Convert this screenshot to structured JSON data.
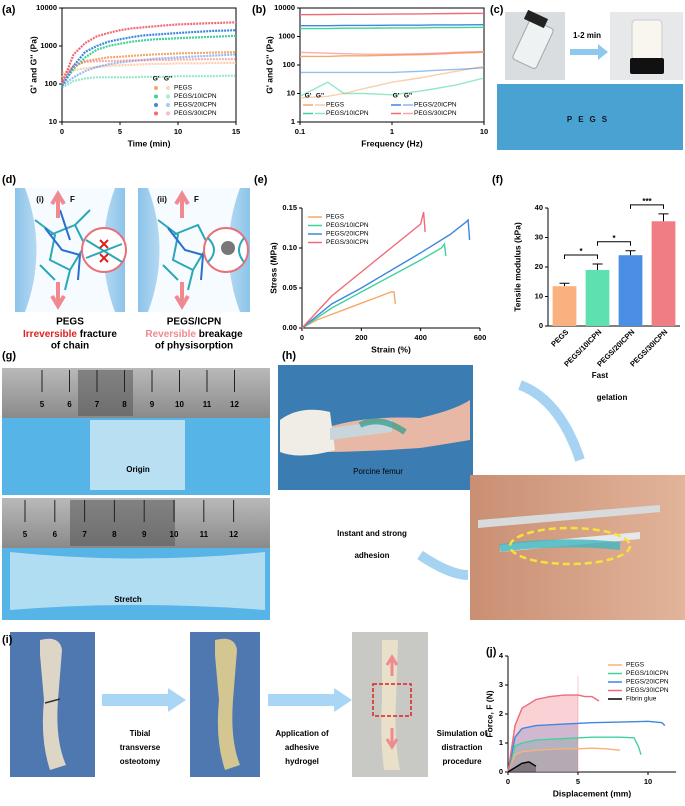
{
  "chart_data": [
    {
      "type": "line",
      "panel_label": "(a)",
      "xlabel": "Time (min)",
      "ylabel": "G' and G'' (Pa)",
      "x": [
        0,
        1,
        2,
        3,
        4,
        5,
        6,
        7,
        8,
        9,
        10,
        11,
        12,
        13,
        14,
        15
      ],
      "xlim": [
        0,
        15
      ],
      "xticks": [
        0,
        5,
        10,
        15
      ],
      "ylim": [
        10,
        10000
      ],
      "yticks": [
        10,
        100,
        1000,
        10000
      ],
      "ylog": true,
      "box": true,
      "legend": "lower right",
      "legend_columns": 1,
      "marker": "circle",
      "legend_headers": [
        "G'",
        "G''"
      ],
      "series": [
        {
          "name": "PEGS",
          "color": "#f5a86a",
          "storage": [
            150,
            300,
            400,
            450,
            500,
            520,
            550,
            580,
            600,
            620,
            640,
            650,
            660,
            670,
            680,
            690
          ],
          "loss": [
            200,
            230,
            260,
            280,
            300,
            310,
            320,
            330,
            340,
            340,
            350,
            350,
            350,
            360,
            360,
            360
          ]
        },
        {
          "name": "PEGS/10ICPN",
          "color": "#3fd39c",
          "storage": [
            90,
            250,
            500,
            800,
            1000,
            1150,
            1300,
            1400,
            1500,
            1550,
            1600,
            1650,
            1700,
            1750,
            1800,
            1850
          ],
          "loss": [
            80,
            120,
            140,
            150,
            150,
            150,
            150,
            155,
            155,
            155,
            160,
            160,
            160,
            160,
            165,
            165
          ]
        },
        {
          "name": "PEGS/20ICPN",
          "color": "#3f86e0",
          "storage": [
            90,
            300,
            700,
            1000,
            1300,
            1500,
            1700,
            1900,
            2000,
            2100,
            2200,
            2300,
            2400,
            2500,
            2550,
            2600
          ],
          "loss": [
            90,
            150,
            220,
            280,
            330,
            370,
            400,
            430,
            460,
            480,
            500,
            520,
            540,
            560,
            580,
            600
          ]
        },
        {
          "name": "PEGS/30ICPN",
          "color": "#f06a78",
          "storage": [
            100,
            600,
            1200,
            1800,
            2200,
            2600,
            2900,
            3100,
            3300,
            3500,
            3700,
            3800,
            3900,
            4000,
            4100,
            4200
          ],
          "loss": [
            120,
            300,
            380,
            400,
            400,
            410,
            420,
            420,
            430,
            430,
            440,
            440,
            450,
            450,
            450,
            450
          ]
        }
      ]
    },
    {
      "type": "line",
      "panel_label": "(b)",
      "xlabel": "Frequency (Hz)",
      "ylabel": "G' and G'' (Pa)",
      "x": [
        0.1,
        0.2,
        0.3,
        0.5,
        1,
        2,
        3,
        5,
        10
      ],
      "xlim": [
        0.1,
        10
      ],
      "xticks": [
        0.1,
        1,
        10
      ],
      "xlog": true,
      "ylim": [
        1,
        10000
      ],
      "yticks": [
        1,
        10,
        100,
        1000,
        10000
      ],
      "ylog": true,
      "box": true,
      "legend": "lower center",
      "legend_columns": 2,
      "legend_headers": [
        "G'",
        "G''"
      ],
      "series": [
        {
          "name": "PEGS",
          "color": "#f5a86a",
          "storage": [
            200,
            200,
            210,
            210,
            220,
            230,
            240,
            260,
            280
          ],
          "loss": [
            7,
            8,
            10,
            15,
            25,
            35,
            45,
            60,
            90
          ]
        },
        {
          "name": "PEGS/10ICPN",
          "color": "#3fd39c",
          "storage": [
            1900,
            1900,
            1950,
            1950,
            2000,
            2000,
            2050,
            2050,
            2100
          ],
          "loss": [
            8,
            25,
            10,
            10,
            9,
            12,
            15,
            20,
            35
          ]
        },
        {
          "name": "PEGS/20ICPN",
          "color": "#3f86e0",
          "storage": [
            2400,
            2400,
            2450,
            2450,
            2500,
            2500,
            2550,
            2550,
            2600
          ],
          "loss": [
            55,
            55,
            55,
            55,
            55,
            60,
            65,
            70,
            80
          ]
        },
        {
          "name": "PEGS/30ICPN",
          "color": "#f06a78",
          "storage": [
            5800,
            5900,
            6000,
            6000,
            6100,
            6200,
            6300,
            6400,
            6500
          ],
          "loss": [
            280,
            260,
            250,
            240,
            240,
            250,
            260,
            280,
            300
          ]
        }
      ]
    },
    {
      "type": "line",
      "panel_label": "(e)",
      "xlabel": "Strain (%)",
      "ylabel": "Stress (MPa)",
      "xlim": [
        0,
        600
      ],
      "xticks": [
        0,
        200,
        400,
        600
      ],
      "ylim": [
        0,
        0.15
      ],
      "yticks": [
        {
          "value": 0,
          "label": "0.00"
        },
        0.05,
        {
          "value": 0.1,
          "label": "0.10"
        },
        0.15
      ],
      "legend": "upper left",
      "series": [
        {
          "name": "PEGS",
          "color": "#f5a86a",
          "x": [
            0,
            50,
            100,
            150,
            200,
            250,
            300,
            310,
            315
          ],
          "values": [
            0,
            0.01,
            0.017,
            0.024,
            0.031,
            0.038,
            0.045,
            0.045,
            0.03
          ]
        },
        {
          "name": "PEGS/10ICPN",
          "color": "#3fd39c",
          "x": [
            0,
            100,
            200,
            300,
            400,
            470,
            480,
            485
          ],
          "values": [
            0,
            0.025,
            0.045,
            0.065,
            0.085,
            0.1,
            0.105,
            0.09
          ]
        },
        {
          "name": "PEGS/20ICPN",
          "color": "#3f86e0",
          "x": [
            0,
            100,
            200,
            300,
            400,
            500,
            555,
            560,
            565
          ],
          "values": [
            0,
            0.03,
            0.05,
            0.072,
            0.094,
            0.117,
            0.133,
            0.135,
            0.11
          ]
        },
        {
          "name": "PEGS/30ICPN",
          "color": "#f06a78",
          "x": [
            0,
            100,
            200,
            300,
            400,
            410,
            415
          ],
          "values": [
            0,
            0.04,
            0.07,
            0.1,
            0.13,
            0.145,
            0.12
          ]
        }
      ]
    },
    {
      "type": "bar",
      "panel_label": "(f)",
      "ylabel": "Tensile modulus (kPa)",
      "categories": [
        "PEGS",
        "PEGS/10ICPN",
        "PEGS/20ICPN",
        "PEGS/30ICPN"
      ],
      "values": [
        13.5,
        19,
        24,
        35.5
      ],
      "errors": [
        1,
        2,
        1.5,
        2.5
      ],
      "colors": [
        "#f9b27f",
        "#5fe0b0",
        "#4b8ee6",
        "#f07c84"
      ],
      "ylim": [
        0,
        40
      ],
      "yticks": [
        0,
        10,
        20,
        30,
        40
      ],
      "significance": [
        "*",
        "*",
        "***"
      ]
    },
    {
      "type": "line",
      "panel_label": "(j)",
      "xlabel": "Displacement (mm)",
      "ylabel": "Force, F (N)",
      "xlim": [
        0,
        12
      ],
      "xticks": [
        0,
        5,
        10
      ],
      "ylim": [
        0,
        4
      ],
      "yticks": [
        0,
        1,
        2,
        3,
        4
      ],
      "legend": "upper right",
      "shade_x": 5,
      "series": [
        {
          "name": "PEGS",
          "color": "#f5b27a",
          "x": [
            0,
            0.5,
            1,
            2,
            3,
            4,
            5,
            6,
            7,
            8
          ],
          "values": [
            0,
            0.6,
            0.7,
            0.75,
            0.78,
            0.8,
            0.8,
            0.82,
            0.8,
            0.75
          ]
        },
        {
          "name": "PEGS/10ICPN",
          "color": "#3fd39c",
          "x": [
            0,
            0.5,
            1,
            2,
            4,
            6,
            8,
            9,
            9.3,
            9.5
          ],
          "values": [
            0,
            0.9,
            1.0,
            1.1,
            1.15,
            1.2,
            1.2,
            1.18,
            0.9,
            0.6
          ]
        },
        {
          "name": "PEGS/20ICPN",
          "color": "#3f86e0",
          "x": [
            0,
            0.5,
            1,
            2,
            4,
            6,
            8,
            10,
            11,
            11.2
          ],
          "values": [
            0,
            1.2,
            1.5,
            1.6,
            1.65,
            1.7,
            1.72,
            1.75,
            1.7,
            1.6
          ]
        },
        {
          "name": "PEGS/30ICPN",
          "color": "#f06a78",
          "x": [
            0,
            0.5,
            1,
            2,
            3,
            4,
            5,
            5.5,
            6,
            6.5
          ],
          "values": [
            0,
            1.6,
            2.2,
            2.5,
            2.6,
            2.65,
            2.65,
            2.6,
            2.6,
            2.45
          ]
        },
        {
          "name": "Fibrin glue",
          "color": "#000000",
          "x": [
            0,
            0.5,
            1,
            1.5,
            2
          ],
          "values": [
            0,
            0.15,
            0.3,
            0.35,
            0.2
          ]
        }
      ]
    }
  ],
  "panels": {
    "c": {
      "label": "(c)",
      "arrow_text": "1-2 min",
      "letters": "PEGS"
    },
    "d": {
      "label": "(d)",
      "left": {
        "tag": "(i)",
        "force": "F",
        "name": "PEGS",
        "emph": "Irreversible",
        "rest": "fracture",
        "last": "of chain"
      },
      "right": {
        "tag": "(ii)",
        "force": "F",
        "name": "PEGS/ICPN",
        "emph": "Reversible",
        "rest": "breakage",
        "last": "of physisorption"
      }
    },
    "g": {
      "label": "(g)",
      "ruler_top": [
        5,
        6,
        7,
        8,
        9,
        10,
        11,
        12
      ],
      "ruler_bottom": [
        5,
        6,
        7,
        8,
        9,
        10,
        11,
        12
      ],
      "top_caption": "Origin",
      "bottom_caption": "Stretch"
    },
    "h": {
      "label": "(h)",
      "photo_caption": "Porcine femur",
      "gelation": [
        "Fast",
        "gelation"
      ],
      "adhesion": [
        "Instant and strong",
        "adhesion"
      ]
    },
    "i": {
      "label": "(i)",
      "steps": [
        [
          "Tibial",
          "transverse",
          "osteotomy"
        ],
        [
          "Application of",
          "adhesive",
          "hydrogel"
        ],
        [
          "Simulation of",
          "distraction",
          "procedure"
        ]
      ]
    }
  }
}
